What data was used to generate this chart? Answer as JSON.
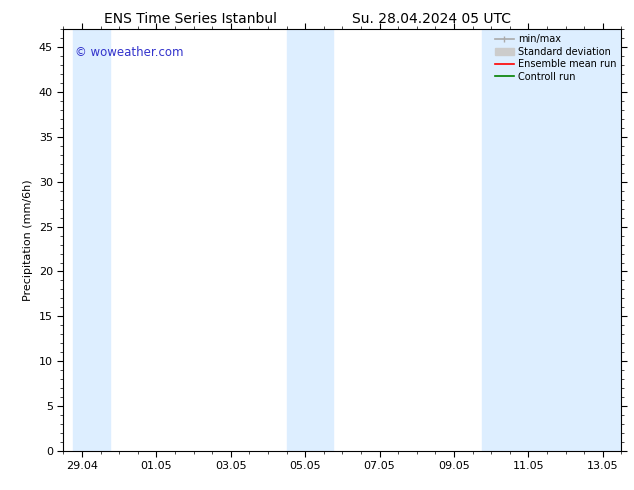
{
  "title_left": "ENS Time Series Istanbul",
  "title_right": "Su. 28.04.2024 05 UTC",
  "ylabel": "Precipitation (mm/6h)",
  "watermark": "© woweather.com",
  "watermark_color": "#3333cc",
  "background_color": "#ffffff",
  "plot_bg_color": "#ffffff",
  "ylim": [
    0,
    47
  ],
  "yticks": [
    0,
    5,
    10,
    15,
    20,
    25,
    30,
    35,
    40,
    45
  ],
  "xtick_labels": [
    "29.04",
    "01.05",
    "03.05",
    "05.05",
    "07.05",
    "09.05",
    "11.05",
    "13.05"
  ],
  "xtick_positions": [
    0,
    2,
    4,
    6,
    8,
    10,
    12,
    14
  ],
  "shaded_bands": [
    {
      "x_start": -0.25,
      "x_end": 0.75,
      "color": "#ddeeff"
    },
    {
      "x_start": 5.5,
      "x_end": 6.75,
      "color": "#ddeeff"
    },
    {
      "x_start": 10.75,
      "x_end": 14.5,
      "color": "#ddeeff"
    }
  ],
  "legend_items": [
    {
      "label": "min/max",
      "color": "#aaaaaa",
      "lw": 1.2
    },
    {
      "label": "Standard deviation",
      "color": "#cccccc",
      "lw": 6
    },
    {
      "label": "Ensemble mean run",
      "color": "#ff0000",
      "lw": 1.2
    },
    {
      "label": "Controll run",
      "color": "#008000",
      "lw": 1.2
    }
  ],
  "title_fontsize": 10,
  "label_fontsize": 8,
  "tick_fontsize": 8,
  "watermark_fontsize": 8.5,
  "xlim": [
    -0.5,
    14.5
  ],
  "minor_xtick_step": 0.5
}
